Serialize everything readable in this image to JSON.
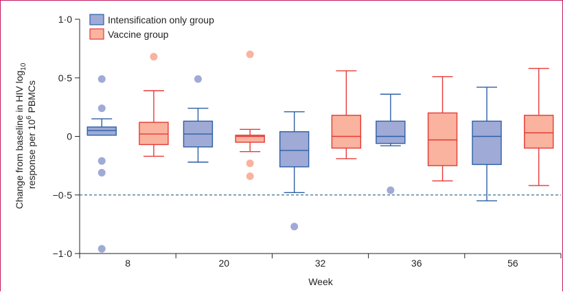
{
  "chart_data": {
    "type": "box",
    "xlabel": "Week",
    "ylabel_line1": "Change from baseline in HIV log",
    "ylabel_sub": "10",
    "ylabel_line2": "response per 10",
    "ylabel_sup": "6",
    "ylabel_line2_end": " PBMCs",
    "ylim": [
      -1.0,
      1.0
    ],
    "yticks": [
      1.0,
      0.5,
      0,
      -0.5,
      -1.0
    ],
    "ytick_labels": [
      "1·0",
      "0·5",
      "0",
      "−0·5",
      "−1·0"
    ],
    "reference_line": -0.5,
    "legend_position": "top-left",
    "categories": [
      "8",
      "20",
      "32",
      "36",
      "56"
    ],
    "colors": {
      "intensification_fill": "#9faad6",
      "intensification_stroke": "#2b5fa4",
      "vaccine_fill": "#f9b39e",
      "vaccine_stroke": "#e53935",
      "dashed_line": "#3d6f8e"
    },
    "series": [
      {
        "name": "Intensification only group",
        "boxes": [
          {
            "whisker_low": 0.01,
            "q1": 0.01,
            "median": 0.05,
            "q3": 0.08,
            "whisker_high": 0.15,
            "outliers": [
              0.49,
              0.24,
              -0.21,
              -0.31,
              -0.96
            ]
          },
          {
            "whisker_low": -0.22,
            "q1": -0.09,
            "median": 0.02,
            "q3": 0.13,
            "whisker_high": 0.24,
            "outliers": [
              0.49
            ]
          },
          {
            "whisker_low": -0.48,
            "q1": -0.26,
            "median": -0.12,
            "q3": 0.04,
            "whisker_high": 0.21,
            "outliers": [
              -0.77
            ]
          },
          {
            "whisker_low": -0.08,
            "q1": -0.06,
            "median": 0.0,
            "q3": 0.13,
            "whisker_high": 0.36,
            "outliers": [
              -0.46
            ]
          },
          {
            "whisker_low": -0.55,
            "q1": -0.24,
            "median": 0.0,
            "q3": 0.13,
            "whisker_high": 0.42,
            "outliers": []
          }
        ]
      },
      {
        "name": "Vaccine group",
        "boxes": [
          {
            "whisker_low": -0.17,
            "q1": -0.07,
            "median": 0.02,
            "q3": 0.12,
            "whisker_high": 0.39,
            "outliers": [
              0.68
            ]
          },
          {
            "whisker_low": -0.13,
            "q1": -0.05,
            "median": 0.0,
            "q3": 0.01,
            "whisker_high": 0.06,
            "outliers": [
              0.7,
              -0.23,
              -0.34
            ]
          },
          {
            "whisker_low": -0.19,
            "q1": -0.1,
            "median": 0.0,
            "q3": 0.18,
            "whisker_high": 0.56,
            "outliers": []
          },
          {
            "whisker_low": -0.38,
            "q1": -0.25,
            "median": -0.03,
            "q3": 0.2,
            "whisker_high": 0.51,
            "outliers": []
          },
          {
            "whisker_low": -0.42,
            "q1": -0.1,
            "median": 0.03,
            "q3": 0.18,
            "whisker_high": 0.58,
            "outliers": []
          }
        ]
      }
    ]
  }
}
